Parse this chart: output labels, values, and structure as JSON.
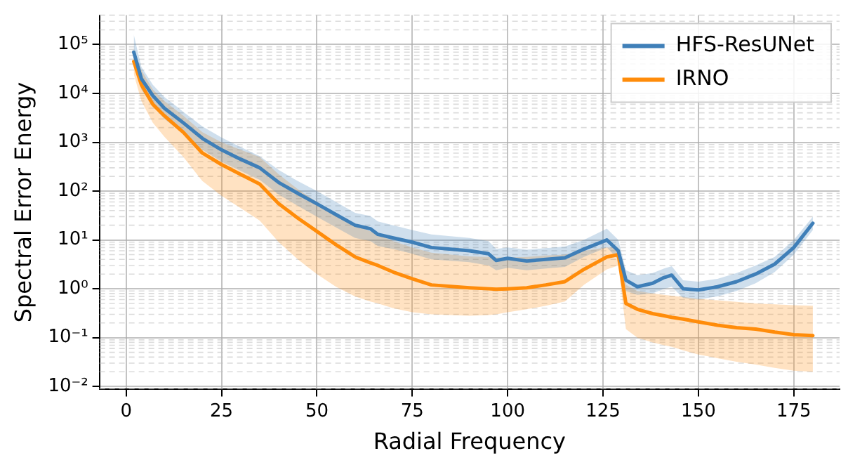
{
  "chart_data": {
    "type": "line",
    "xlabel": "Radial Frequency",
    "ylabel": "Spectral Error Energy",
    "x": [
      2,
      4,
      7,
      10,
      15,
      20,
      25,
      30,
      35,
      40,
      45,
      50,
      55,
      60,
      64,
      66,
      70,
      75,
      80,
      90,
      95,
      97,
      100,
      105,
      110,
      115,
      120,
      126,
      129,
      131,
      134,
      138,
      141,
      143,
      146,
      150,
      155,
      160,
      165,
      170,
      175,
      180
    ],
    "series": [
      {
        "name": "HFS-ResUNet",
        "color": "#3f7fb8",
        "values": [
          70000,
          20000,
          9000,
          5000,
          2500,
          1200,
          700,
          450,
          300,
          150,
          90,
          55,
          33,
          20,
          17,
          13,
          11,
          9,
          7,
          6,
          5.2,
          3.8,
          4.2,
          3.7,
          4,
          4.3,
          6.5,
          10,
          6,
          1.5,
          1.1,
          1.3,
          1.7,
          1.9,
          1.0,
          0.95,
          1.1,
          1.4,
          2,
          3.2,
          7,
          22
        ],
        "lower": [
          40000,
          12000,
          5500,
          3000,
          1500,
          700,
          400,
          260,
          170,
          85,
          50,
          30,
          18,
          11,
          9.5,
          7.5,
          6.5,
          5.2,
          4,
          3.5,
          3,
          2.4,
          2.7,
          2.4,
          2.6,
          2.8,
          4.5,
          7,
          4,
          0.9,
          0.75,
          0.8,
          1.0,
          1.1,
          0.65,
          0.6,
          0.7,
          0.9,
          1.3,
          2.2,
          5,
          16
        ],
        "upper": [
          160000,
          35000,
          15000,
          8500,
          4200,
          2100,
          1250,
          800,
          520,
          270,
          160,
          100,
          60,
          36,
          31,
          24,
          20,
          16,
          13,
          11,
          9.5,
          6.5,
          7,
          6.3,
          6.8,
          7.3,
          10,
          17,
          10,
          2.4,
          1.9,
          2.1,
          2.6,
          2.9,
          1.5,
          1.4,
          1.6,
          2.1,
          3,
          4.5,
          10,
          30
        ]
      },
      {
        "name": "IRNO",
        "color": "#ff8c0a",
        "values": [
          45000,
          15000,
          6000,
          3500,
          1600,
          600,
          350,
          220,
          140,
          55,
          28,
          15,
          8,
          4.5,
          3.4,
          3,
          2.2,
          1.6,
          1.2,
          1.05,
          1.0,
          0.98,
          1.0,
          1.05,
          1.2,
          1.4,
          2.5,
          4.5,
          5,
          0.5,
          0.38,
          0.31,
          0.28,
          0.26,
          0.24,
          0.21,
          0.18,
          0.16,
          0.15,
          0.13,
          0.115,
          0.11
        ],
        "lower": [
          25000,
          7000,
          2500,
          1300,
          500,
          160,
          80,
          45,
          25,
          9,
          4,
          2,
          1.1,
          0.7,
          0.55,
          0.5,
          0.4,
          0.33,
          0.3,
          0.28,
          0.29,
          0.3,
          0.33,
          0.38,
          0.45,
          0.55,
          1.2,
          2.5,
          3,
          0.15,
          0.1,
          0.08,
          0.07,
          0.065,
          0.055,
          0.045,
          0.038,
          0.032,
          0.028,
          0.024,
          0.021,
          0.02
        ],
        "upper": [
          80000,
          30000,
          12000,
          7000,
          3500,
          1600,
          1000,
          700,
          500,
          220,
          110,
          60,
          35,
          20,
          15,
          13,
          9.5,
          7,
          5.5,
          4.6,
          4.5,
          4.4,
          4.4,
          4.5,
          4.8,
          5,
          6,
          7,
          7,
          1.2,
          0.9,
          0.8,
          0.75,
          0.72,
          0.68,
          0.62,
          0.58,
          0.54,
          0.5,
          0.48,
          0.46,
          0.45
        ]
      }
    ],
    "xlim": [
      -7,
      187
    ],
    "xticks": [
      0,
      25,
      50,
      75,
      100,
      125,
      150,
      175
    ],
    "ylim": [
      0.0087,
      400000
    ],
    "log": true,
    "yticks": [
      {
        "value": 0.01,
        "label": "10⁻²"
      },
      {
        "value": 0.1,
        "label": "10⁻¹"
      },
      {
        "value": 1,
        "label": "10⁰"
      },
      {
        "value": 10,
        "label": "10¹"
      },
      {
        "value": 100,
        "label": "10²"
      },
      {
        "value": 1000,
        "label": "10³"
      },
      {
        "value": 10000,
        "label": "10⁴"
      },
      {
        "value": 100000,
        "label": "10⁵"
      }
    ],
    "grid": true,
    "legend": "top right",
    "marker": "none",
    "line_style": "solid"
  }
}
